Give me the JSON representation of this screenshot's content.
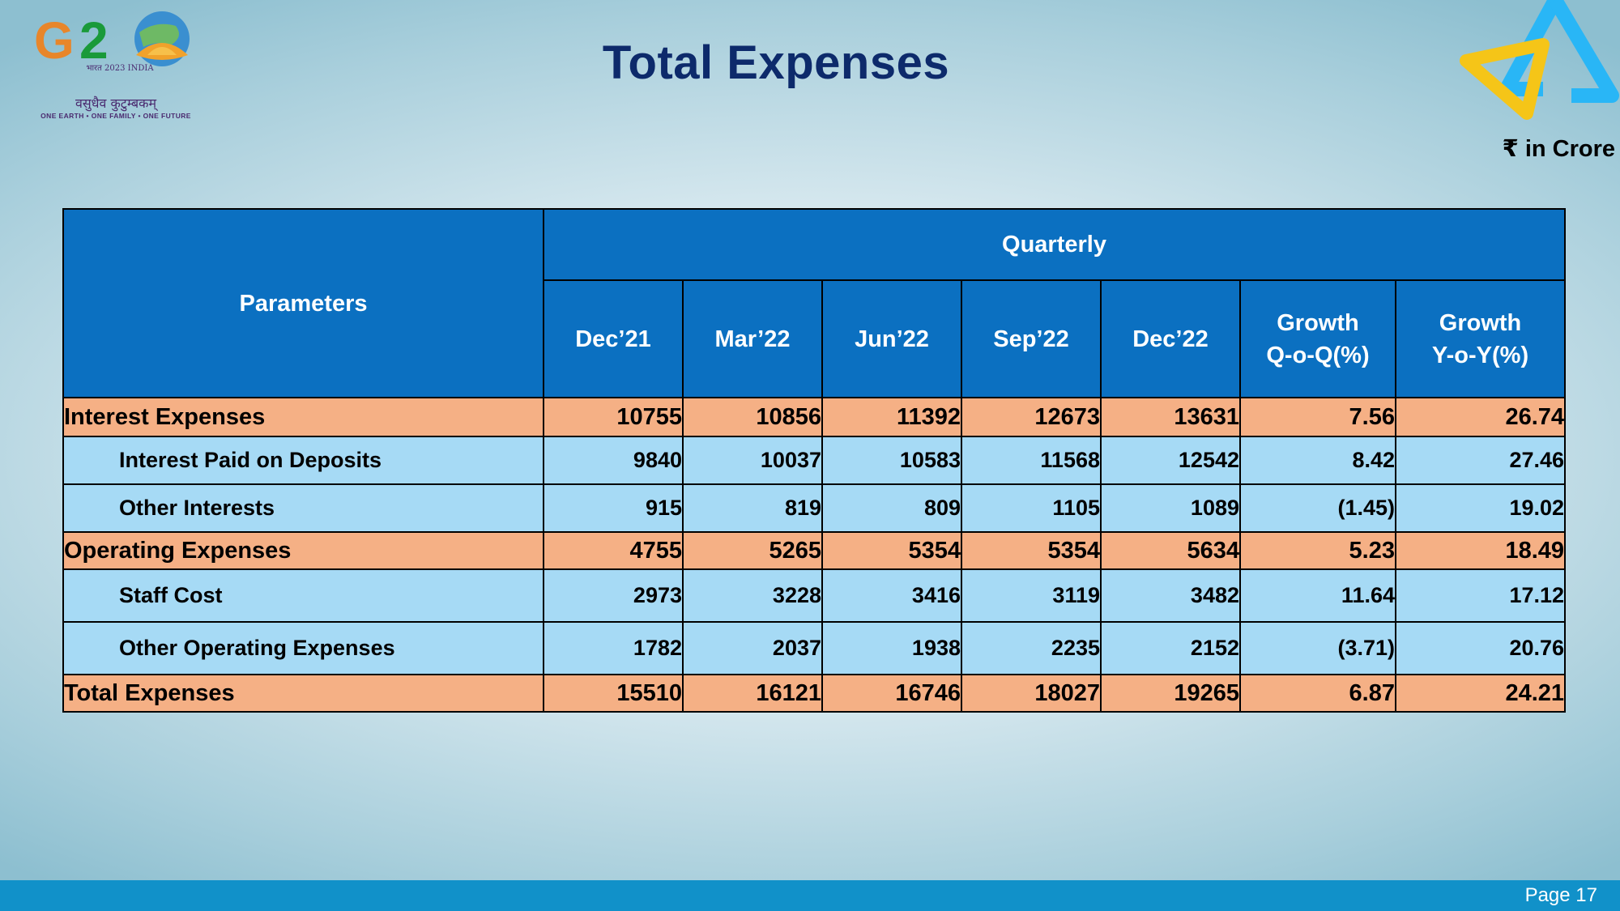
{
  "title": "Total Expenses",
  "unit_note": "₹ in Crore",
  "logos": {
    "left": {
      "name": "G20",
      "hindi_text": "भारत 2023 INDIA",
      "hindi_tagline": "वसुधैव कुटुम्बकम्",
      "tagline": "ONE EARTH • ONE FAMILY • ONE FUTURE",
      "colors": [
        "#e8862a",
        "#1a9a3a",
        "#1f6fb6"
      ]
    },
    "right": {
      "name": "SBI triangle logo",
      "colors": [
        "#29b6f6",
        "#f5c518"
      ]
    }
  },
  "table": {
    "param_header": "Parameters",
    "group_header": "Quarterly",
    "columns": [
      "Dec’21",
      "Mar’22",
      "Jun’22",
      "Sep’22",
      "Dec’22"
    ],
    "growth_qoq": [
      "Growth",
      "Q-o-Q(%)"
    ],
    "growth_yoy": [
      "Growth",
      "Y-o-Y(%)"
    ],
    "rows": [
      {
        "type": "main",
        "label": "Interest Expenses",
        "values": [
          "10755",
          "10856",
          "11392",
          "12673",
          "13631",
          "7.56",
          "26.74"
        ]
      },
      {
        "type": "sub",
        "label": "Interest Paid on Deposits",
        "values": [
          "9840",
          "10037",
          "10583",
          "11568",
          "12542",
          "8.42",
          "27.46"
        ]
      },
      {
        "type": "sub",
        "label": "Other Interests",
        "values": [
          "915",
          "819",
          "809",
          "1105",
          "1089",
          "(1.45)",
          "19.02"
        ]
      },
      {
        "type": "main",
        "label": "Operating Expenses",
        "values": [
          "4755",
          "5265",
          "5354",
          "5354",
          "5634",
          "5.23",
          "18.49"
        ]
      },
      {
        "type": "sub",
        "label": "Staff Cost",
        "values": [
          "2973",
          "3228",
          "3416",
          "3119",
          "3482",
          "11.64",
          "17.12"
        ]
      },
      {
        "type": "sub",
        "label": "Other Operating Expenses",
        "values": [
          "1782",
          "2037",
          "1938",
          "2235",
          "2152",
          "(3.71)",
          "20.76"
        ]
      },
      {
        "type": "main",
        "label": "Total Expenses",
        "values": [
          "15510",
          "16121",
          "16746",
          "18027",
          "19265",
          "6.87",
          "24.21"
        ]
      }
    ]
  },
  "footer": {
    "page": "Page 17"
  },
  "colors": {
    "header_blue": "#0b70c1",
    "main_row": "#f5b085",
    "sub_row": "#a6daf5",
    "footer_bar": "#1191c9",
    "title": "#0d2a6b"
  }
}
